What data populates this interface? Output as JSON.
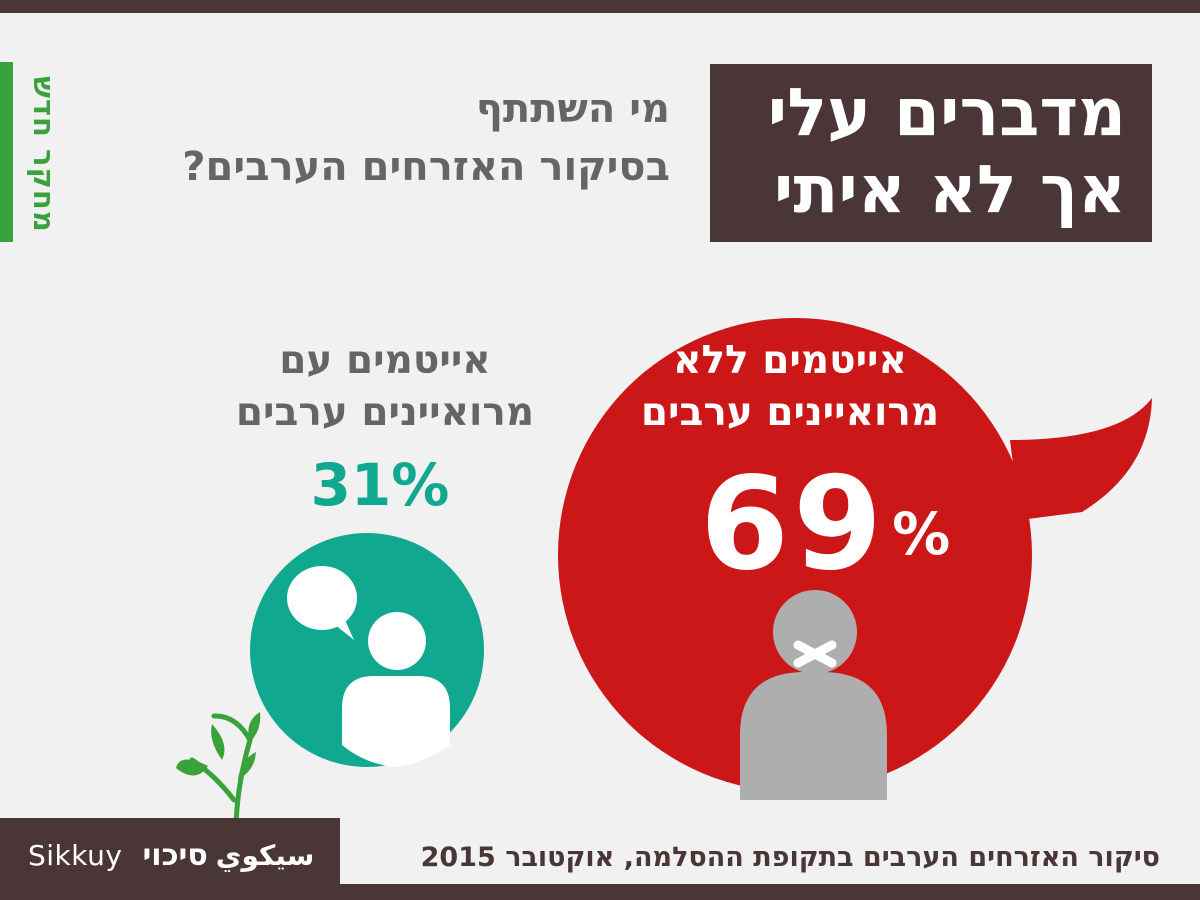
{
  "colors": {
    "brown": "#4a3637",
    "red": "#cc1719",
    "teal": "#11a890",
    "green": "#39a23a",
    "gray_text": "#666565",
    "figure_gray": "#aeaeae",
    "background": "#f1f1f1"
  },
  "side_label": "מחקר חדש",
  "title": {
    "line1": "מדברים עלי",
    "line2": "אך לא איתי"
  },
  "question": {
    "line1": "מי השתתף",
    "line2": "בסיקור האזרחים הערבים?"
  },
  "without_arab_interviewees": {
    "label_line1": "אייטמים ללא",
    "label_line2": "מרואיינים ערבים",
    "value": 69,
    "value_text": "69",
    "percent_sign": "%"
  },
  "with_arab_interviewees": {
    "label_line1": "אייטמים עם",
    "label_line2": "מרואיינים ערבים",
    "value": 31,
    "value_text": "31%"
  },
  "icons": {
    "sprout": "sprout-logo-icon",
    "silenced_person": "gagged-person-icon",
    "speaking_person": "speaking-person-icon"
  },
  "logo": {
    "english": "Sikkuy",
    "arabic": "سيكوي",
    "hebrew": "סיכוי"
  },
  "footer": "סיקור האזרחים הערבים בתקופת ההסלמה, אוקטובר 2015"
}
